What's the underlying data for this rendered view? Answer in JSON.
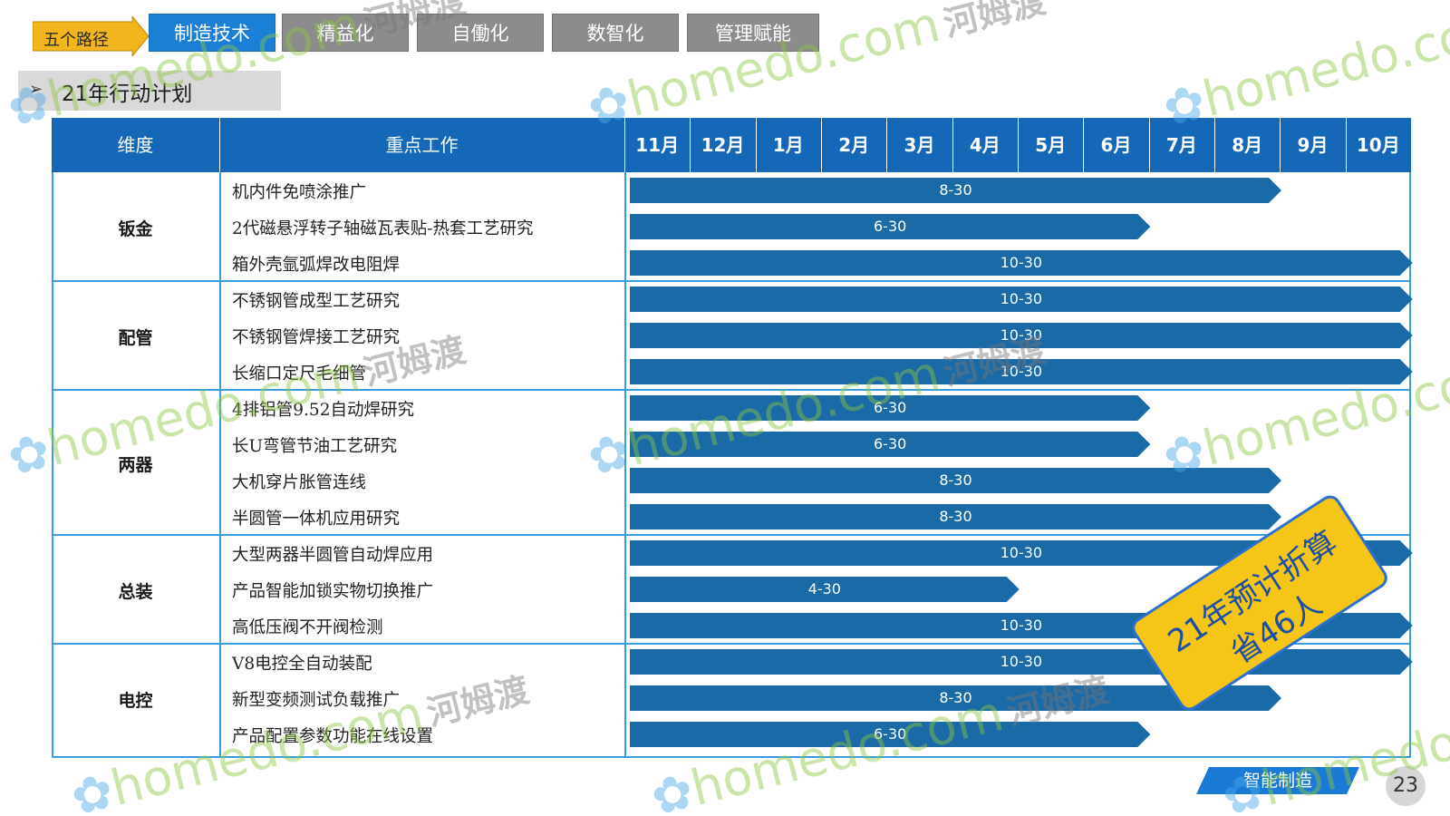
{
  "nav": {
    "path_label": "五个路径",
    "tabs": [
      {
        "label": "制造技术",
        "active": true
      },
      {
        "label": "精益化",
        "active": false
      },
      {
        "label": "自働化",
        "active": false
      },
      {
        "label": "数智化",
        "active": false
      },
      {
        "label": "管理赋能",
        "active": false
      }
    ]
  },
  "plan": {
    "arrow": "➢",
    "title": "21年行动计划"
  },
  "table": {
    "header_dimension": "维度",
    "header_work": "重点工作",
    "months": [
      "11月",
      "12月",
      "1月",
      "2月",
      "3月",
      "4月",
      "5月",
      "6月",
      "7月",
      "8月",
      "9月",
      "10月"
    ],
    "groups": [
      {
        "dimension": "钣金",
        "tasks": [
          {
            "name": "机内件免喷涂推广",
            "deadline": "8-30"
          },
          {
            "name": "2代磁悬浮转子轴磁瓦表贴-热套工艺研究",
            "deadline": "6-30"
          },
          {
            "name": "箱外壳氩弧焊改电阻焊",
            "deadline": "10-30"
          }
        ]
      },
      {
        "dimension": "配管",
        "tasks": [
          {
            "name": "不锈钢管成型工艺研究",
            "deadline": "10-30"
          },
          {
            "name": "不锈钢管焊接工艺研究",
            "deadline": "10-30"
          },
          {
            "name": "长缩口定尺毛细管",
            "deadline": "10-30"
          }
        ]
      },
      {
        "dimension": "两器",
        "tasks": [
          {
            "name": "4排铝管9.52自动焊研究",
            "deadline": "6-30"
          },
          {
            "name": "长U弯管节油工艺研究",
            "deadline": "6-30"
          },
          {
            "name": "大机穿片胀管连线",
            "deadline": "8-30"
          },
          {
            "name": "半圆管一体机应用研究",
            "deadline": "8-30"
          }
        ]
      },
      {
        "dimension": "总装",
        "tasks": [
          {
            "name": "大型两器半圆管自动焊应用",
            "deadline": "10-30"
          },
          {
            "name": "产品智能加锁实物切换推广",
            "deadline": "4-30"
          },
          {
            "name": "高低压阀不开阀检测",
            "deadline": "10-30"
          }
        ]
      },
      {
        "dimension": "电控",
        "tasks": [
          {
            "name": "V8电控全自动装配",
            "deadline": "10-30"
          },
          {
            "name": "新型变频测试负载推广",
            "deadline": "8-30"
          },
          {
            "name": "产品配置参数功能在线设置",
            "deadline": "6-30"
          }
        ]
      }
    ]
  },
  "stamp": {
    "line1": "21年预计折算",
    "line2": "省46人"
  },
  "footer": {
    "badge": "智能制造",
    "page": "23"
  },
  "watermark": {
    "en": "homedo.com",
    "cn": "河姆渡",
    "icon": "flower-logo-icon"
  },
  "colors": {
    "header_blue": "#1568b8",
    "tab_active": "#1c7fd6",
    "tab_inactive": "#8c8c8c",
    "bar_blue": "#1a6aa8",
    "border_blue": "#3a9de0",
    "stamp_yellow": "#f5c518"
  }
}
